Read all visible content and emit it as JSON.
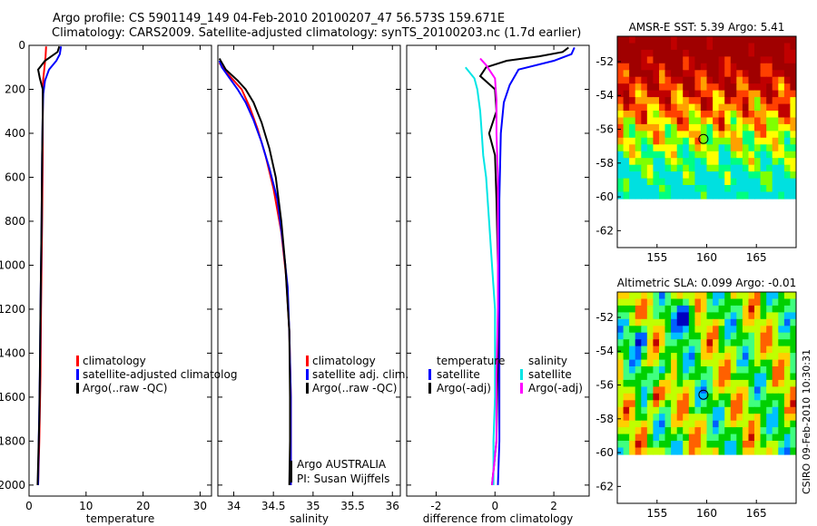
{
  "header": {
    "line1": "Argo profile: CS 5901149_149 04-Feb-2010 20100207_47 56.573S 159.671E",
    "line2": "Climatology: CARS2009. Satellite-adjusted climatology: synTS_20100203.nc (1.7d earlier)"
  },
  "side_label": "CSIRO 09-Feb-2010 10:30:31",
  "chart_data": [
    {
      "type": "line",
      "panel": "temperature",
      "xlabel": "temperature",
      "xlim": [
        0,
        32
      ],
      "ylim": [
        2050,
        0
      ],
      "xticks": [
        0,
        10,
        20,
        30
      ],
      "xtick_labels": [
        "0",
        "10",
        "20",
        "30"
      ],
      "yticks": [
        0,
        200,
        400,
        600,
        800,
        1000,
        1200,
        1400,
        1600,
        1800,
        2000
      ],
      "ytick_labels": [
        "0",
        "200",
        "400",
        "600",
        "800",
        "1000",
        "1200",
        "1400",
        "1600",
        "1800",
        "2000"
      ],
      "legend": [
        "climatology",
        "satellite-adjusted climatolog",
        "Argo(..raw -QC)"
      ],
      "legend_colors": [
        "#ff0000",
        "#0000ff",
        "#000000"
      ],
      "series": [
        {
          "name": "climatology",
          "color": "#ff0000",
          "points": [
            [
              3.0,
              5
            ],
            [
              2.9,
              50
            ],
            [
              2.7,
              100
            ],
            [
              2.5,
              150
            ],
            [
              2.4,
              200
            ],
            [
              2.4,
              300
            ],
            [
              2.4,
              500
            ],
            [
              2.3,
              800
            ],
            [
              2.2,
              1000
            ],
            [
              2.1,
              1200
            ],
            [
              2.0,
              1500
            ],
            [
              1.8,
              1800
            ],
            [
              1.6,
              2000
            ]
          ]
        },
        {
          "name": "satellite-adjusted climatolog",
          "color": "#0000ff",
          "points": [
            [
              5.6,
              5
            ],
            [
              5.4,
              40
            ],
            [
              4.8,
              70
            ],
            [
              3.5,
              110
            ],
            [
              2.8,
              160
            ],
            [
              2.5,
              220
            ],
            [
              2.4,
              300
            ],
            [
              2.3,
              500
            ],
            [
              2.2,
              800
            ],
            [
              2.1,
              1000
            ],
            [
              2.0,
              1200
            ],
            [
              1.9,
              1500
            ],
            [
              1.7,
              1800
            ],
            [
              1.6,
              2000
            ]
          ]
        },
        {
          "name": "Argo(..raw -QC)",
          "color": "#000000",
          "points": [
            [
              5.3,
              5
            ],
            [
              5.0,
              30
            ],
            [
              2.8,
              70
            ],
            [
              1.6,
              110
            ],
            [
              1.9,
              150
            ],
            [
              2.4,
              200
            ],
            [
              2.4,
              300
            ],
            [
              2.3,
              500
            ],
            [
              2.2,
              800
            ],
            [
              2.1,
              1000
            ],
            [
              2.0,
              1200
            ],
            [
              1.9,
              1500
            ],
            [
              1.8,
              1700
            ],
            [
              1.5,
              2000
            ]
          ]
        }
      ]
    },
    {
      "type": "line",
      "panel": "salinity",
      "xlabel": "salinity",
      "xlim": [
        33.8,
        36.1
      ],
      "ylim": [
        2050,
        0
      ],
      "xticks": [
        34,
        34.5,
        35,
        35.5,
        36
      ],
      "xtick_labels": [
        "34",
        "34.5",
        "35",
        "35.5",
        "36"
      ],
      "legend": [
        "climatology",
        "satellite adj. clim.",
        "Argo(..raw -QC)"
      ],
      "legend_colors": [
        "#ff0000",
        "#0000ff",
        "#000000"
      ],
      "annotation": [
        "Argo AUSTRALIA",
        "PI: Susan Wijffels"
      ],
      "series": [
        {
          "name": "climatology",
          "color": "#ff0000",
          "points": [
            [
              33.82,
              80
            ],
            [
              33.9,
              120
            ],
            [
              34.0,
              160
            ],
            [
              34.1,
              200
            ],
            [
              34.2,
              280
            ],
            [
              34.3,
              380
            ],
            [
              34.4,
              500
            ],
            [
              34.5,
              650
            ],
            [
              34.6,
              850
            ],
            [
              34.66,
              1050
            ],
            [
              34.7,
              1300
            ],
            [
              34.72,
              1600
            ],
            [
              34.72,
              2000
            ]
          ]
        },
        {
          "name": "satellite adj. clim.",
          "color": "#0000ff",
          "points": [
            [
              33.82,
              70
            ],
            [
              33.85,
              100
            ],
            [
              33.95,
              150
            ],
            [
              34.05,
              200
            ],
            [
              34.15,
              260
            ],
            [
              34.25,
              340
            ],
            [
              34.35,
              440
            ],
            [
              34.45,
              560
            ],
            [
              34.55,
              700
            ],
            [
              34.62,
              900
            ],
            [
              34.68,
              1100
            ],
            [
              34.7,
              1300
            ],
            [
              34.72,
              1600
            ],
            [
              34.72,
              2000
            ]
          ]
        },
        {
          "name": "Argo(..raw -QC)",
          "color": "#000000",
          "points": [
            [
              33.82,
              60
            ],
            [
              33.9,
              110
            ],
            [
              34.05,
              160
            ],
            [
              34.15,
              200
            ],
            [
              34.25,
              260
            ],
            [
              34.35,
              350
            ],
            [
              34.45,
              470
            ],
            [
              34.53,
              600
            ],
            [
              34.6,
              800
            ],
            [
              34.65,
              1000
            ],
            [
              34.7,
              1300
            ],
            [
              34.71,
              1600
            ],
            [
              34.71,
              1800
            ],
            [
              34.7,
              2000
            ]
          ]
        }
      ]
    },
    {
      "type": "line",
      "panel": "difference",
      "xlabel": "difference from climatology",
      "xlim": [
        -3,
        3.2
      ],
      "ylim": [
        2050,
        0
      ],
      "xticks": [
        -2,
        0,
        2
      ],
      "xtick_labels": [
        "-2",
        "0",
        "2"
      ],
      "legend_left": {
        "title": "temperature",
        "items": [
          "satellite",
          "Argo(-adj)"
        ],
        "colors": [
          "#0000ff",
          "#000000"
        ]
      },
      "legend_right": {
        "title": "salinity",
        "items": [
          "satellite",
          "Argo(-adj)"
        ],
        "colors": [
          "#00e5e5",
          "#ff00ff"
        ]
      },
      "series": [
        {
          "name": "temperature satellite",
          "color": "#0000ff",
          "points": [
            [
              2.7,
              10
            ],
            [
              2.6,
              40
            ],
            [
              2.0,
              70
            ],
            [
              0.8,
              110
            ],
            [
              0.5,
              180
            ],
            [
              0.3,
              260
            ],
            [
              0.2,
              400
            ],
            [
              0.15,
              700
            ],
            [
              0.15,
              1000
            ],
            [
              0.15,
              1400
            ],
            [
              0.15,
              1800
            ],
            [
              0.1,
              2000
            ]
          ]
        },
        {
          "name": "temperature Argo(-adj)",
          "color": "#000000",
          "points": [
            [
              2.5,
              10
            ],
            [
              2.3,
              30
            ],
            [
              1.5,
              50
            ],
            [
              0.4,
              70
            ],
            [
              -0.3,
              100
            ],
            [
              -0.5,
              140
            ],
            [
              0,
              200
            ],
            [
              0.05,
              300
            ],
            [
              -0.2,
              400
            ],
            [
              0,
              500
            ],
            [
              0.05,
              700
            ],
            [
              0.1,
              1000
            ],
            [
              0.1,
              1400
            ],
            [
              0.05,
              1800
            ],
            [
              -0.1,
              2000
            ]
          ]
        },
        {
          "name": "salinity satellite",
          "color": "#00e5e5",
          "points": [
            [
              -1.0,
              100
            ],
            [
              -0.7,
              150
            ],
            [
              -0.6,
              200
            ],
            [
              -0.5,
              300
            ],
            [
              -0.45,
              400
            ],
            [
              -0.4,
              500
            ],
            [
              -0.3,
              600
            ],
            [
              -0.2,
              800
            ],
            [
              -0.1,
              1000
            ],
            [
              0,
              1200
            ],
            [
              0,
              1400
            ],
            [
              0,
              1600
            ],
            [
              -0.05,
              1800
            ],
            [
              -0.05,
              2000
            ]
          ]
        },
        {
          "name": "salinity Argo(-adj)",
          "color": "#ff00ff",
          "points": [
            [
              -0.5,
              60
            ],
            [
              -0.3,
              90
            ],
            [
              0,
              150
            ],
            [
              0.05,
              250
            ],
            [
              0.05,
              400
            ],
            [
              0.1,
              600
            ],
            [
              0.1,
              900
            ],
            [
              0.1,
              1200
            ],
            [
              0.05,
              1500
            ],
            [
              0.05,
              1800
            ],
            [
              -0.1,
              2000
            ]
          ]
        }
      ]
    },
    {
      "type": "heatmap",
      "panel": "sst_map",
      "title": "AMSR-E SST: 5.39 Argo: 5.41",
      "xlim": [
        151,
        169
      ],
      "ylim": [
        -63,
        -50.5
      ],
      "xticks": [
        155,
        160,
        165
      ],
      "xtick_labels": [
        "155",
        "160",
        "165"
      ],
      "yticks": [
        -52,
        -54,
        -56,
        -58,
        -60,
        -62
      ],
      "ytick_labels": [
        "-52",
        "-54",
        "-56",
        "-58",
        "-60",
        "-62"
      ],
      "data_extent_lat": [
        -60,
        -50.5
      ],
      "argo_position": [
        159.671,
        -56.573
      ],
      "colormap": [
        "#00e0e0",
        "#00ff80",
        "#80ff00",
        "#ffff00",
        "#ffa000",
        "#ff4000",
        "#c00000",
        "#a00000"
      ]
    },
    {
      "type": "heatmap",
      "panel": "sla_map",
      "title": "Altimetric SLA: 0.099 Argo: -0.01",
      "xlim": [
        151,
        169
      ],
      "ylim": [
        -63,
        -50.5
      ],
      "xticks": [
        155,
        160,
        165
      ],
      "xtick_labels": [
        "155",
        "160",
        "165"
      ],
      "yticks": [
        -52,
        -54,
        -56,
        -58,
        -60,
        -62
      ],
      "ytick_labels": [
        "-52",
        "-54",
        "-56",
        "-58",
        "-60",
        "-62"
      ],
      "data_extent_lat": [
        -60,
        -50.5
      ],
      "argo_position": [
        159.671,
        -56.573
      ],
      "colormap": [
        "#0000c0",
        "#0060ff",
        "#00c0ff",
        "#40ff80",
        "#00d000",
        "#c0ff00",
        "#ffd000",
        "#ff6000",
        "#c00000"
      ]
    }
  ]
}
